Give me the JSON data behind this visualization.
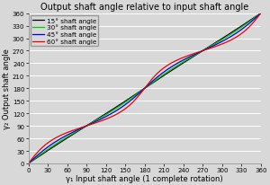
{
  "title": "Output shaft angle relative to input shaft angle",
  "xlabel": "γ₁ Input shaft angle (1 complete rotation)",
  "ylabel": "γ₂ Output shaft angle",
  "xlim": [
    0,
    360
  ],
  "ylim": [
    0,
    360
  ],
  "xticks": [
    0,
    30,
    60,
    90,
    120,
    150,
    180,
    210,
    240,
    270,
    300,
    330,
    360
  ],
  "yticks": [
    0,
    30,
    60,
    90,
    120,
    150,
    180,
    210,
    240,
    270,
    300,
    330,
    360
  ],
  "bend_angles": [
    15,
    30,
    45,
    60
  ],
  "line_colors": [
    "#000000",
    "#00cc00",
    "#0000ee",
    "#ee0000"
  ],
  "legend_labels": [
    "15° shaft angle",
    "30° shaft angle",
    "45° shaft angle",
    "60° shaft angle"
  ],
  "bg_color": "#d8d8d8",
  "plot_bg_color": "#d8d8d8",
  "grid_color": "#ffffff",
  "title_fontsize": 7.0,
  "label_fontsize": 6.0,
  "tick_fontsize": 5.0,
  "legend_fontsize": 5.2,
  "line_width": 0.9
}
